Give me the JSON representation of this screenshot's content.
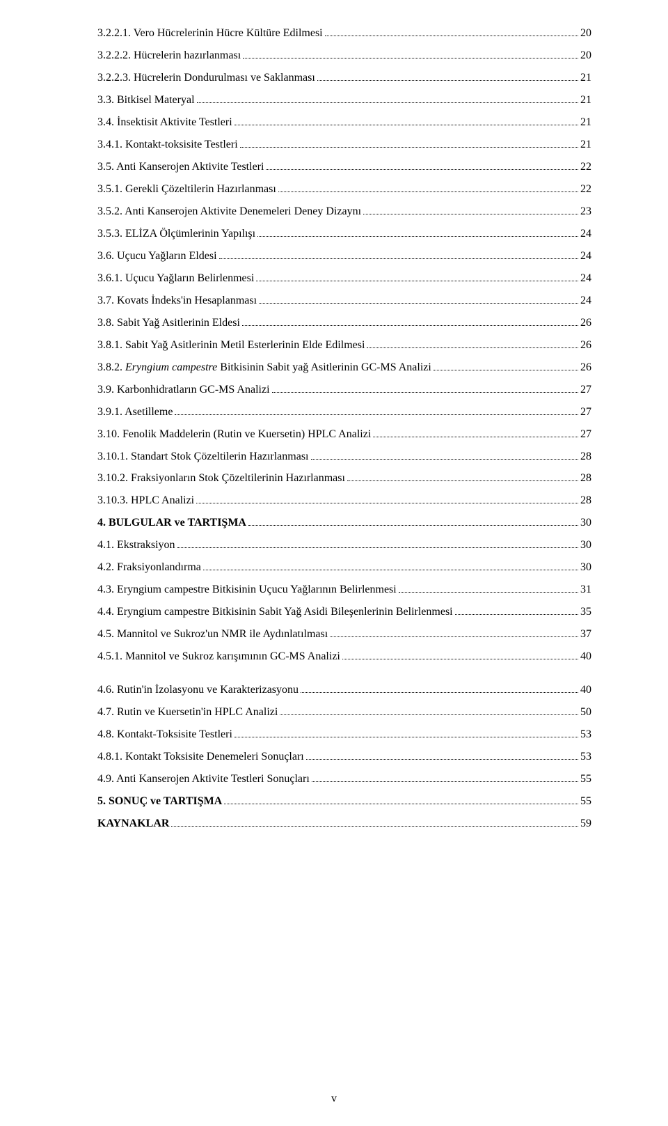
{
  "toc": [
    {
      "label": "3.2.2.1. Vero Hücrelerinin Hücre Kültüre Edilmesi",
      "page": "20",
      "bold": false
    },
    {
      "label": "3.2.2.2. Hücrelerin hazırlanması",
      "page": "20",
      "bold": false
    },
    {
      "label": "3.2.2.3. Hücrelerin Dondurulması ve Saklanması",
      "page": "21",
      "bold": false
    },
    {
      "label": "3.3. Bitkisel Materyal",
      "page": "21",
      "bold": false
    },
    {
      "label": "3.4. İnsektisit Aktivite Testleri",
      "page": "21",
      "bold": false
    },
    {
      "label": "3.4.1. Kontakt-toksisite Testleri",
      "page": "21",
      "bold": false
    },
    {
      "label": "3.5. Anti Kanserojen Aktivite Testleri",
      "page": "22",
      "bold": false
    },
    {
      "label": "3.5.1. Gerekli Çözeltilerin Hazırlanması",
      "page": "22",
      "bold": false
    },
    {
      "label": "3.5.2. Anti Kanserojen Aktivite Denemeleri Deney Dizaynı",
      "page": "23",
      "bold": false
    },
    {
      "label": "3.5.3. ELİZA Ölçümlerinin Yapılışı",
      "page": "24",
      "bold": false
    },
    {
      "label": "3.6. Uçucu Yağların Eldesi",
      "page": "24",
      "bold": false
    },
    {
      "label": "3.6.1. Uçucu Yağların Belirlenmesi",
      "page": "24",
      "bold": false
    },
    {
      "label": "3.7. Kovats İndeks'in Hesaplanması",
      "page": "24",
      "bold": false
    },
    {
      "label": "3.8. Sabit Yağ Asitlerinin Eldesi",
      "page": "26",
      "bold": false
    },
    {
      "label": "3.8.1. Sabit Yağ Asitlerinin Metil Esterlerinin Elde Edilmesi",
      "page": "26",
      "bold": false
    },
    {
      "label": "3.8.2. <em>Eryngium campestre</em> Bitkisinin Sabit yağ Asitlerinin GC-MS Analizi",
      "page": "26",
      "bold": false,
      "italic": true
    },
    {
      "label": "3.9. Karbonhidratların GC-MS Analizi",
      "page": "27",
      "bold": false
    },
    {
      "label": "3.9.1. Asetilleme",
      "page": "27",
      "bold": false
    },
    {
      "label": "3.10. Fenolik Maddelerin (Rutin ve Kuersetin) HPLC Analizi",
      "page": "27",
      "bold": false
    },
    {
      "label": "3.10.1. Standart Stok Çözeltilerin Hazırlanması",
      "page": "28",
      "bold": false
    },
    {
      "label": "3.10.2. Fraksiyonların Stok Çözeltilerinin Hazırlanması",
      "page": "28",
      "bold": false
    },
    {
      "label": "3.10.3. HPLC Analizi",
      "page": "28",
      "bold": false
    },
    {
      "label": "4. BULGULAR ve TARTIŞMA",
      "page": "30",
      "bold": true
    },
    {
      "label": "4.1. Ekstraksiyon",
      "page": "30",
      "bold": false
    },
    {
      "label": "4.2. Fraksiyonlandırma",
      "page": "30",
      "bold": false
    },
    {
      "label": "4.3. Eryngium campestre Bitkisinin Uçucu Yağlarının Belirlenmesi",
      "page": "31",
      "bold": false
    },
    {
      "label": "4.4. Eryngium campestre Bitkisinin Sabit Yağ Asidi Bileşenlerinin Belirlenmesi",
      "page": "35",
      "bold": false
    },
    {
      "label": "4.5. Mannitol ve Sukroz'un NMR ile Aydınlatılması",
      "page": "37",
      "bold": false
    },
    {
      "label": "4.5.1. Mannitol ve Sukroz karışımının GC-MS Analizi",
      "page": "40",
      "bold": false,
      "gap": true
    },
    {
      "label": "4.6. Rutin'in İzolasyonu ve Karakterizasyonu",
      "page": "40",
      "bold": false
    },
    {
      "label": "4.7. Rutin ve Kuersetin'in HPLC Analizi",
      "page": "50",
      "bold": false
    },
    {
      "label": "4.8. Kontakt-Toksisite Testleri",
      "page": "53",
      "bold": false
    },
    {
      "label": "4.8.1. Kontakt Toksisite Denemeleri Sonuçları",
      "page": "53",
      "bold": false
    },
    {
      "label": "4.9. Anti Kanserojen Aktivite Testleri Sonuçları",
      "page": "55",
      "bold": false
    },
    {
      "label": "5. SONUÇ ve TARTIŞMA",
      "page": "55",
      "bold": true
    },
    {
      "label": "KAYNAKLAR",
      "page": "59",
      "bold": true
    }
  ],
  "page_number": "v"
}
